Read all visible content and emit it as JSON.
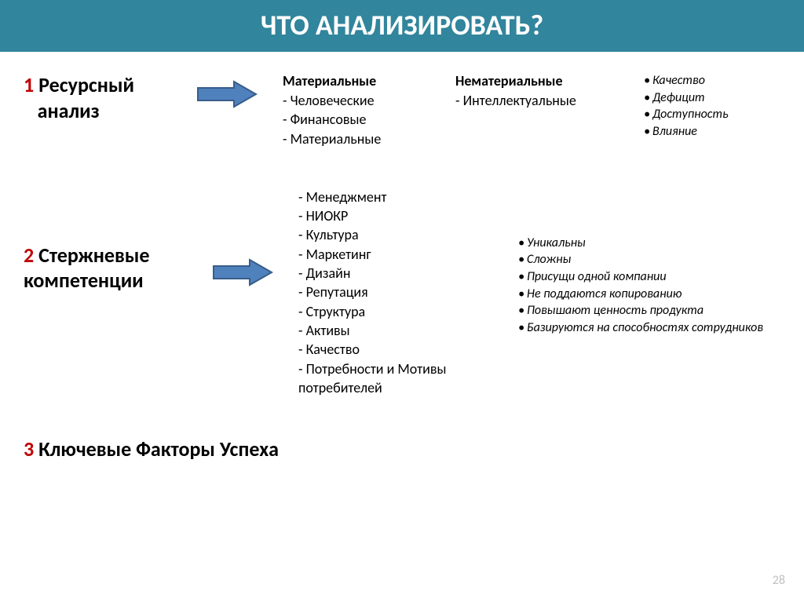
{
  "colors": {
    "header_bg": "#31859c",
    "header_text": "#ffffff",
    "number": "#c00000",
    "text": "#000000",
    "arrow_fill": "#4f81bd",
    "arrow_stroke": "#385d8a",
    "page_num": "#bfbfbf",
    "background": "#ffffff"
  },
  "header": "ЧТО АНАЛИЗИРОВАТЬ?",
  "section1": {
    "num": "1",
    "title_line1": " Ресурсный",
    "title_line2": "анализ",
    "colA_heading": "Материальные",
    "colA_items": [
      "- Человеческие",
      "- Финансовые",
      "- Материальные"
    ],
    "colB_heading": "Нематериальные",
    "colB_items": [
      "- Интеллектуальные"
    ],
    "colC_items": [
      "Качество",
      "Дефицит",
      "Доступность",
      "Влияние"
    ]
  },
  "section2": {
    "num": "2",
    "title_line1": " Стержневые",
    "title_line2": "компетенции",
    "colA_items": [
      "- Менеджмент",
      "- НИОКР",
      "- Культура",
      "- Маркетинг",
      "- Дизайн",
      "- Репутация",
      "- Структура",
      "- Активы",
      "- Качество",
      "- Потребности и Мотивы  потребителей"
    ],
    "colB_items": [
      "Уникальны",
      "Сложны",
      "Присущи одной компании",
      "Не поддаются копированию",
      "Повышают ценность продукта",
      "Базируются на способностях сотрудников"
    ]
  },
  "section3": {
    "num": "3",
    "title": " Ключевые Факторы Успеха"
  },
  "page_number": "28"
}
